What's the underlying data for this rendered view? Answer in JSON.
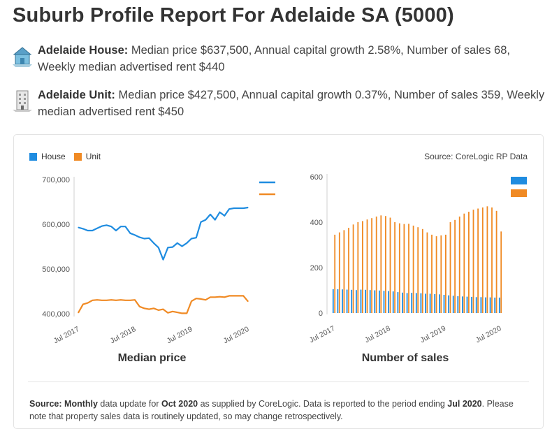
{
  "page": {
    "title": "Suburb Profile Report For Adelaide SA (5000)"
  },
  "house": {
    "label": "Adelaide House:",
    "text": "Median price $637,500, Annual capital growth 2.58%, Number of sales 68, Weekly median advertised rent $440",
    "icon": "house-icon"
  },
  "unit": {
    "label": "Adelaide Unit:",
    "text": "Median price $427,500, Annual capital growth 0.37%, Number of sales 359, Weekly median advertised rent $450",
    "icon": "building-icon"
  },
  "legend": {
    "house": "House",
    "unit": "Unit",
    "house_color": "#1f8ce0",
    "unit_color": "#f08a24"
  },
  "source": "Source: CoreLogic RP Data",
  "footer": {
    "p1": "Source:",
    "p2": "Monthly",
    "p3": " data update for ",
    "p4": "Oct 2020",
    "p5": " as supplied by CoreLogic. Data is reported to the period ending ",
    "p6": "Jul 2020",
    "p7": ". Please note that property sales data is routinely updated, so may change retrospectively."
  },
  "chart_data": [
    {
      "type": "line",
      "title": "Median price",
      "x_ticks": [
        "Jul 2017",
        "Jul 2018",
        "Jul 2019",
        "Jul 2020"
      ],
      "y_ticks": [
        "400,000",
        "500,000",
        "600,000",
        "700,000"
      ],
      "ylim": [
        400000,
        700000
      ],
      "x": [
        "2017-07",
        "2017-08",
        "2017-09",
        "2017-10",
        "2017-11",
        "2017-12",
        "2018-01",
        "2018-02",
        "2018-03",
        "2018-04",
        "2018-05",
        "2018-06",
        "2018-07",
        "2018-08",
        "2018-09",
        "2018-10",
        "2018-11",
        "2018-12",
        "2019-01",
        "2019-02",
        "2019-03",
        "2019-04",
        "2019-05",
        "2019-06",
        "2019-07",
        "2019-08",
        "2019-09",
        "2019-10",
        "2019-11",
        "2019-12",
        "2020-01",
        "2020-02",
        "2020-03",
        "2020-04",
        "2020-05",
        "2020-06",
        "2020-07"
      ],
      "series": [
        {
          "name": "House",
          "color": "#1f8ce0",
          "values": [
            593000,
            590000,
            586000,
            586000,
            591000,
            596000,
            598000,
            595000,
            586000,
            595000,
            595000,
            580000,
            576000,
            571000,
            568000,
            569000,
            558000,
            548000,
            521000,
            548000,
            549000,
            558000,
            551000,
            558000,
            568000,
            570000,
            605000,
            610000,
            622000,
            610000,
            627000,
            619000,
            634000,
            636000,
            636000,
            636000,
            637500
          ]
        },
        {
          "name": "Unit",
          "color": "#f08a24",
          "values": [
            402000,
            421000,
            424000,
            430000,
            431000,
            430000,
            430000,
            431000,
            430000,
            431000,
            430000,
            430000,
            431000,
            416000,
            412000,
            410000,
            412000,
            408000,
            410000,
            402000,
            405000,
            403000,
            401000,
            401000,
            428000,
            434000,
            433000,
            431000,
            437000,
            437000,
            438000,
            437000,
            440000,
            440000,
            440000,
            440000,
            427500
          ]
        }
      ]
    },
    {
      "type": "bar",
      "title": "Number of sales",
      "x_ticks": [
        "Jul 2017",
        "Jul 2018",
        "Jul 2019",
        "Jul 2020"
      ],
      "y_ticks": [
        "0",
        "200",
        "400",
        "600"
      ],
      "ylim": [
        0,
        600
      ],
      "x": [
        "2017-07",
        "2017-08",
        "2017-09",
        "2017-10",
        "2017-11",
        "2017-12",
        "2018-01",
        "2018-02",
        "2018-03",
        "2018-04",
        "2018-05",
        "2018-06",
        "2018-07",
        "2018-08",
        "2018-09",
        "2018-10",
        "2018-11",
        "2018-12",
        "2019-01",
        "2019-02",
        "2019-03",
        "2019-04",
        "2019-05",
        "2019-06",
        "2019-07",
        "2019-08",
        "2019-09",
        "2019-10",
        "2019-11",
        "2019-12",
        "2020-01",
        "2020-02",
        "2020-03",
        "2020-04",
        "2020-05",
        "2020-06",
        "2020-07"
      ],
      "series": [
        {
          "name": "House",
          "color": "#1f8ce0",
          "values": [
            105,
            105,
            104,
            103,
            102,
            101,
            103,
            102,
            101,
            100,
            99,
            98,
            97,
            95,
            92,
            90,
            88,
            89,
            88,
            87,
            85,
            85,
            83,
            82,
            80,
            78,
            76,
            74,
            73,
            72,
            71,
            70,
            70,
            69,
            69,
            68,
            68
          ]
        },
        {
          "name": "Unit",
          "color": "#f08a24",
          "values": [
            345,
            355,
            365,
            375,
            390,
            400,
            405,
            412,
            418,
            425,
            430,
            427,
            420,
            400,
            395,
            392,
            393,
            385,
            378,
            370,
            355,
            345,
            338,
            342,
            345,
            400,
            410,
            425,
            438,
            446,
            455,
            460,
            465,
            470,
            465,
            450,
            359
          ]
        }
      ]
    }
  ]
}
